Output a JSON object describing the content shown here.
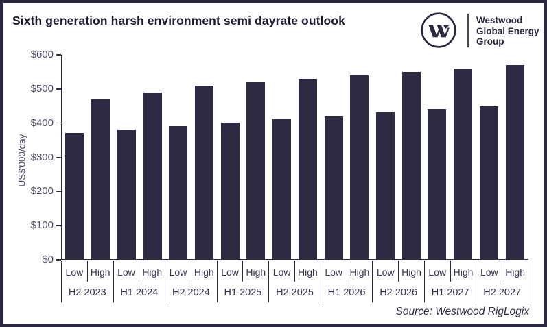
{
  "header": {
    "title": "Sixth generation harsh environment semi dayrate outlook",
    "logo": {
      "brand_lines": [
        "Westwood",
        "Global Energy",
        "Group"
      ]
    }
  },
  "footer": {
    "source": "Source: Westwood RigLogix"
  },
  "colors": {
    "navy": "#2b2840",
    "bar": "#2e2a44",
    "title_text": "#1d1d30",
    "axis_text": "#4c4c63",
    "label_text": "#363650"
  },
  "chart_data": {
    "type": "bar",
    "title": "Sixth generation harsh environment semi dayrate outlook",
    "xlabel": "",
    "ylabel": "US$'000/day",
    "ylim": [
      0,
      600
    ],
    "ytick_values": [
      0,
      100,
      200,
      300,
      400,
      500,
      600
    ],
    "ytick_labels": [
      "$0",
      "$100",
      "$200",
      "$300",
      "$400",
      "$500",
      "$600"
    ],
    "categories": [
      "H2 2023",
      "H1 2024",
      "H2 2024",
      "H1 2025",
      "H2 2025",
      "H1 2026",
      "H2 2026",
      "H1 2027",
      "H2 2027"
    ],
    "series": [
      {
        "name": "Low",
        "values": [
          370,
          380,
          390,
          400,
          410,
          420,
          430,
          440,
          450
        ]
      },
      {
        "name": "High",
        "values": [
          470,
          490,
          510,
          520,
          530,
          540,
          550,
          560,
          570
        ]
      }
    ],
    "grid": false,
    "legend_position": "none",
    "source": "Source: Westwood RigLogix"
  }
}
